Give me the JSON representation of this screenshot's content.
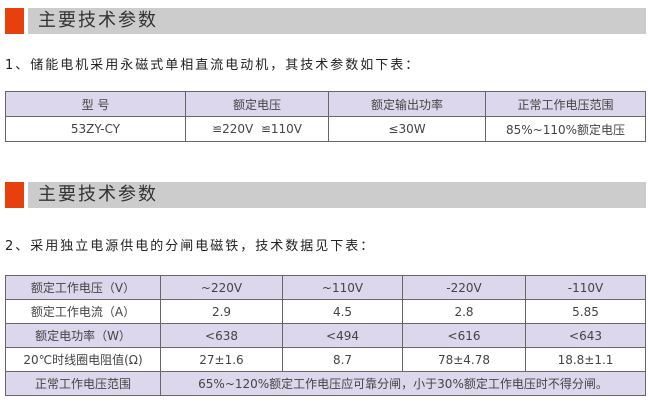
{
  "section1": {
    "title": "主要技术参数",
    "intro": "1、储能电机采用永磁式单相直流电动机，其技术参数如下表：",
    "headers": [
      "型  号",
      "额定电压",
      "额定输出功率",
      "正常工作电压范围"
    ],
    "row": [
      "53ZY-CY",
      "≌220V  ≌110V",
      "≤30W",
      "85%~110%额定电压"
    ]
  },
  "section2": {
    "title": "主要技术参数",
    "intro": "2、采用独立电源供电的分闸电磁铁，技术数据见下表：",
    "rows": [
      [
        "额定工作电压（V）",
        "~220V",
        "~110V",
        "-220V",
        "-110V"
      ],
      [
        "额定工作电流（A）",
        "2.9",
        "4.5",
        "2.8",
        "5.85"
      ],
      [
        "额定电功率（W）",
        "<638",
        "<494",
        "<616",
        "<643"
      ],
      [
        "20℃时线圈电阻值(Ω)",
        "27±1.6",
        "8.7",
        "78±4.78",
        "18.8±1.1"
      ]
    ],
    "last_row": [
      "正常工作电压范围",
      "65%~120%额定工作电压应可靠分闸，小于30%额定工作电压时不得分闸。"
    ]
  },
  "colors": {
    "accent": "#e8400c",
    "header_bar": "#cccccc",
    "table_fill": "#dcd7ec"
  }
}
